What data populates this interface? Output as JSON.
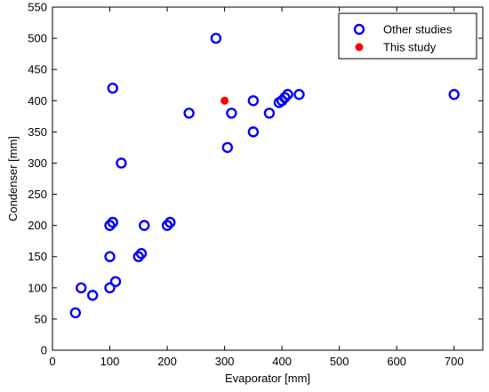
{
  "chart_data": {
    "type": "scatter",
    "title": "",
    "xlabel": "Evaporator [mm]",
    "ylabel": "Condenser [mm]",
    "xlim": [
      0,
      750
    ],
    "ylim": [
      0,
      550
    ],
    "xticks": [
      0,
      100,
      200,
      300,
      400,
      500,
      600,
      700
    ],
    "yticks": [
      0,
      50,
      100,
      150,
      200,
      250,
      300,
      350,
      400,
      450,
      500,
      550
    ],
    "grid": false,
    "legend_position": "top-right",
    "series": [
      {
        "name": "Other studies",
        "marker": "open-circle",
        "color": "#0000ff",
        "points": [
          [
            40,
            60
          ],
          [
            50,
            100
          ],
          [
            70,
            88
          ],
          [
            100,
            100
          ],
          [
            100,
            150
          ],
          [
            100,
            200
          ],
          [
            105,
            205
          ],
          [
            105,
            420
          ],
          [
            110,
            110
          ],
          [
            120,
            300
          ],
          [
            150,
            150
          ],
          [
            155,
            155
          ],
          [
            160,
            200
          ],
          [
            200,
            200
          ],
          [
            205,
            205
          ],
          [
            238,
            380
          ],
          [
            285,
            500
          ],
          [
            305,
            325
          ],
          [
            312,
            380
          ],
          [
            350,
            350
          ],
          [
            350,
            400
          ],
          [
            378,
            380
          ],
          [
            395,
            397
          ],
          [
            400,
            400
          ],
          [
            405,
            405
          ],
          [
            410,
            410
          ],
          [
            430,
            410
          ],
          [
            700,
            410
          ]
        ]
      },
      {
        "name": "This study",
        "marker": "filled-circle",
        "color": "#ff0000",
        "points": [
          [
            300,
            400
          ]
        ]
      }
    ]
  }
}
